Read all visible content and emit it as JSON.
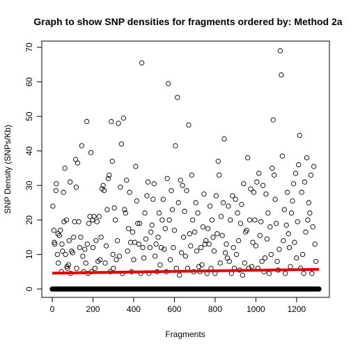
{
  "chart_data": {
    "type": "scatter",
    "title": "Graph to show SNP densities for fragments ordered by: Method 2a",
    "xlabel": "Fragments",
    "ylabel": "SNP Density (SNPs/Kb)",
    "xlim": [
      0,
      1310
    ],
    "ylim": [
      0,
      70
    ],
    "x_ticks": [
      0,
      200,
      400,
      600,
      800,
      1000,
      1200
    ],
    "y_ticks": [
      0,
      10,
      20,
      30,
      40,
      50,
      60,
      70
    ],
    "grid": false,
    "legend": "none",
    "point_color": "#000000",
    "trend_color": "#e00000",
    "trend_line": {
      "x": [
        0,
        1310
      ],
      "y": [
        4.6,
        5.7
      ]
    },
    "zero_count": 640,
    "series": [
      {
        "marker": "open-circle",
        "points": [
          [
            3,
            24.0
          ],
          [
            8,
            17.0
          ],
          [
            10,
            13.5
          ],
          [
            13,
            13.0
          ],
          [
            18,
            28.5
          ],
          [
            20,
            30.5
          ],
          [
            25,
            10.0
          ],
          [
            28,
            16.0
          ],
          [
            30,
            7.5
          ],
          [
            35,
            15.5
          ],
          [
            40,
            17.0
          ],
          [
            45,
            5.0
          ],
          [
            48,
            13.0
          ],
          [
            50,
            11.0
          ],
          [
            55,
            28.0
          ],
          [
            58,
            19.5
          ],
          [
            62,
            35.0
          ],
          [
            65,
            10.0
          ],
          [
            70,
            20.0
          ],
          [
            72,
            6.5
          ],
          [
            75,
            6.0
          ],
          [
            80,
            7.0
          ],
          [
            83,
            14.0
          ],
          [
            88,
            31.0
          ],
          [
            90,
            4.5
          ],
          [
            95,
            11.0
          ],
          [
            100,
            10.5
          ],
          [
            105,
            15.0
          ],
          [
            110,
            19.5
          ],
          [
            115,
            37.5
          ],
          [
            118,
            29.5
          ],
          [
            120,
            6.0
          ],
          [
            125,
            36.5
          ],
          [
            130,
            19.5
          ],
          [
            135,
            12.0
          ],
          [
            140,
            15.0
          ],
          [
            145,
            41.5
          ],
          [
            150,
            9.5
          ],
          [
            155,
            5.0
          ],
          [
            160,
            11.5
          ],
          [
            165,
            7.5
          ],
          [
            170,
            48.5
          ],
          [
            172,
            13.0
          ],
          [
            175,
            4.5
          ],
          [
            180,
            19.0
          ],
          [
            185,
            21.0
          ],
          [
            190,
            39.5
          ],
          [
            193,
            5.0
          ],
          [
            198,
            20.0
          ],
          [
            200,
            12.0
          ],
          [
            205,
            21.0
          ],
          [
            210,
            6.0
          ],
          [
            215,
            14.0
          ],
          [
            220,
            19.5
          ],
          [
            225,
            8.0
          ],
          [
            230,
            21.0
          ],
          [
            235,
            8.5
          ],
          [
            240,
            15.0
          ],
          [
            245,
            29.0
          ],
          [
            250,
            30.0
          ],
          [
            255,
            28.5
          ],
          [
            260,
            7.5
          ],
          [
            265,
            12.5
          ],
          [
            270,
            23.0
          ],
          [
            275,
            32.0
          ],
          [
            280,
            33.0
          ],
          [
            285,
            5.0
          ],
          [
            290,
            48.5
          ],
          [
            295,
            37.0
          ],
          [
            298,
            10.0
          ],
          [
            300,
            6.0
          ],
          [
            305,
            23.5
          ],
          [
            310,
            20.0
          ],
          [
            315,
            8.5
          ],
          [
            320,
            14.0
          ],
          [
            325,
            48.0
          ],
          [
            330,
            9.5
          ],
          [
            335,
            29.5
          ],
          [
            340,
            42.0
          ],
          [
            345,
            4.5
          ],
          [
            350,
            49.5
          ],
          [
            355,
            23.0
          ],
          [
            360,
            22.0
          ],
          [
            365,
            31.5
          ],
          [
            370,
            11.0
          ],
          [
            375,
            17.5
          ],
          [
            380,
            28.0
          ],
          [
            385,
            13.5
          ],
          [
            390,
            5.0
          ],
          [
            395,
            16.5
          ],
          [
            400,
            8.5
          ],
          [
            405,
            13.5
          ],
          [
            410,
            35.5
          ],
          [
            415,
            25.5
          ],
          [
            420,
            19.0
          ],
          [
            425,
            13.0
          ],
          [
            430,
            19.0
          ],
          [
            435,
            4.5
          ],
          [
            440,
            65.5
          ],
          [
            445,
            12.0
          ],
          [
            450,
            9.0
          ],
          [
            455,
            22.0
          ],
          [
            460,
            14.5
          ],
          [
            465,
            27.0
          ],
          [
            470,
            31.0
          ],
          [
            475,
            4.5
          ],
          [
            480,
            12.0
          ],
          [
            485,
            16.5
          ],
          [
            490,
            18.5
          ],
          [
            495,
            26.0
          ],
          [
            500,
            30.5
          ],
          [
            505,
            9.5
          ],
          [
            510,
            13.0
          ],
          [
            515,
            5.0
          ],
          [
            520,
            15.0
          ],
          [
            525,
            22.0
          ],
          [
            530,
            7.0
          ],
          [
            535,
            12.0
          ],
          [
            540,
            20.0
          ],
          [
            545,
            26.0
          ],
          [
            550,
            11.5
          ],
          [
            555,
            17.5
          ],
          [
            560,
            5.0
          ],
          [
            565,
            32.0
          ],
          [
            570,
            59.5
          ],
          [
            575,
            20.0
          ],
          [
            580,
            8.5
          ],
          [
            585,
            28.5
          ],
          [
            590,
            23.0
          ],
          [
            595,
            12.0
          ],
          [
            600,
            17.0
          ],
          [
            605,
            41.5
          ],
          [
            610,
            6.0
          ],
          [
            615,
            55.5
          ],
          [
            620,
            25.0
          ],
          [
            625,
            4.0
          ],
          [
            630,
            31.5
          ],
          [
            635,
            10.5
          ],
          [
            640,
            30.0
          ],
          [
            645,
            15.0
          ],
          [
            650,
            22.5
          ],
          [
            655,
            9.5
          ],
          [
            660,
            28.5
          ],
          [
            665,
            6.0
          ],
          [
            670,
            47.5
          ],
          [
            675,
            16.0
          ],
          [
            680,
            12.5
          ],
          [
            685,
            33.0
          ],
          [
            690,
            20.0
          ],
          [
            695,
            5.0
          ],
          [
            700,
            16.5
          ],
          [
            705,
            25.0
          ],
          [
            710,
            11.0
          ],
          [
            715,
            22.0
          ],
          [
            720,
            6.5
          ],
          [
            725,
            5.0
          ],
          [
            730,
            12.0
          ],
          [
            735,
            7.0
          ],
          [
            740,
            18.0
          ],
          [
            745,
            27.5
          ],
          [
            750,
            13.0
          ],
          [
            755,
            14.0
          ],
          [
            760,
            4.5
          ],
          [
            765,
            17.5
          ],
          [
            770,
            13.0
          ],
          [
            775,
            24.0
          ],
          [
            780,
            6.0
          ],
          [
            785,
            20.0
          ],
          [
            790,
            15.0
          ],
          [
            795,
            11.0
          ],
          [
            800,
            4.5
          ],
          [
            805,
            27.0
          ],
          [
            810,
            16.0
          ],
          [
            815,
            37.0
          ],
          [
            820,
            33.0
          ],
          [
            825,
            7.5
          ],
          [
            830,
            21.0
          ],
          [
            835,
            15.5
          ],
          [
            840,
            25.0
          ],
          [
            845,
            43.5
          ],
          [
            850,
            10.5
          ],
          [
            855,
            13.0
          ],
          [
            860,
            9.0
          ],
          [
            865,
            24.0
          ],
          [
            870,
            8.0
          ],
          [
            875,
            20.0
          ],
          [
            880,
            4.5
          ],
          [
            885,
            27.0
          ],
          [
            890,
            12.0
          ],
          [
            895,
            6.0
          ],
          [
            900,
            26.0
          ],
          [
            905,
            10.0
          ],
          [
            910,
            22.0
          ],
          [
            915,
            14.0
          ],
          [
            920,
            5.5
          ],
          [
            925,
            19.0
          ],
          [
            930,
            24.5
          ],
          [
            935,
            4.0
          ],
          [
            940,
            30.5
          ],
          [
            945,
            7.5
          ],
          [
            950,
            16.5
          ],
          [
            955,
            17.0
          ],
          [
            960,
            38.0
          ],
          [
            965,
            6.0
          ],
          [
            970,
            20.0
          ],
          [
            975,
            29.0
          ],
          [
            980,
            6.5
          ],
          [
            985,
            13.5
          ],
          [
            990,
            28.0
          ],
          [
            995,
            20.0
          ],
          [
            1000,
            12.5
          ],
          [
            1005,
            31.0
          ],
          [
            1010,
            6.0
          ],
          [
            1015,
            33.5
          ],
          [
            1020,
            15.5
          ],
          [
            1025,
            19.5
          ],
          [
            1030,
            8.0
          ],
          [
            1035,
            30.0
          ],
          [
            1040,
            5.0
          ],
          [
            1045,
            9.0
          ],
          [
            1050,
            27.5
          ],
          [
            1055,
            14.5
          ],
          [
            1060,
            22.0
          ],
          [
            1065,
            4.5
          ],
          [
            1070,
            18.0
          ],
          [
            1075,
            10.0
          ],
          [
            1080,
            35.0
          ],
          [
            1085,
            49.0
          ],
          [
            1090,
            33.0
          ],
          [
            1095,
            26.0
          ],
          [
            1100,
            19.0
          ],
          [
            1105,
            8.0
          ],
          [
            1110,
            5.5
          ],
          [
            1115,
            11.5
          ],
          [
            1120,
            69.0
          ],
          [
            1125,
            62.0
          ],
          [
            1130,
            38.5
          ],
          [
            1135,
            14.0
          ],
          [
            1140,
            23.0
          ],
          [
            1145,
            4.5
          ],
          [
            1150,
            18.5
          ],
          [
            1155,
            28.0
          ],
          [
            1160,
            16.0
          ],
          [
            1165,
            12.0
          ],
          [
            1170,
            6.5
          ],
          [
            1175,
            22.0
          ],
          [
            1180,
            25.5
          ],
          [
            1185,
            30.5
          ],
          [
            1190,
            13.5
          ],
          [
            1195,
            33.5
          ],
          [
            1200,
            9.0
          ],
          [
            1205,
            19.5
          ],
          [
            1210,
            36.0
          ],
          [
            1215,
            44.5
          ],
          [
            1220,
            6.0
          ],
          [
            1225,
            28.0
          ],
          [
            1230,
            10.0
          ],
          [
            1235,
            4.5
          ],
          [
            1240,
            31.0
          ],
          [
            1245,
            16.5
          ],
          [
            1250,
            38.0
          ],
          [
            1255,
            20.0
          ],
          [
            1260,
            25.0
          ],
          [
            1265,
            22.0
          ],
          [
            1270,
            33.0
          ],
          [
            1275,
            4.5
          ],
          [
            1280,
            18.0
          ],
          [
            1285,
            35.5
          ],
          [
            1290,
            13.0
          ],
          [
            1295,
            8.0
          ]
        ]
      }
    ]
  }
}
